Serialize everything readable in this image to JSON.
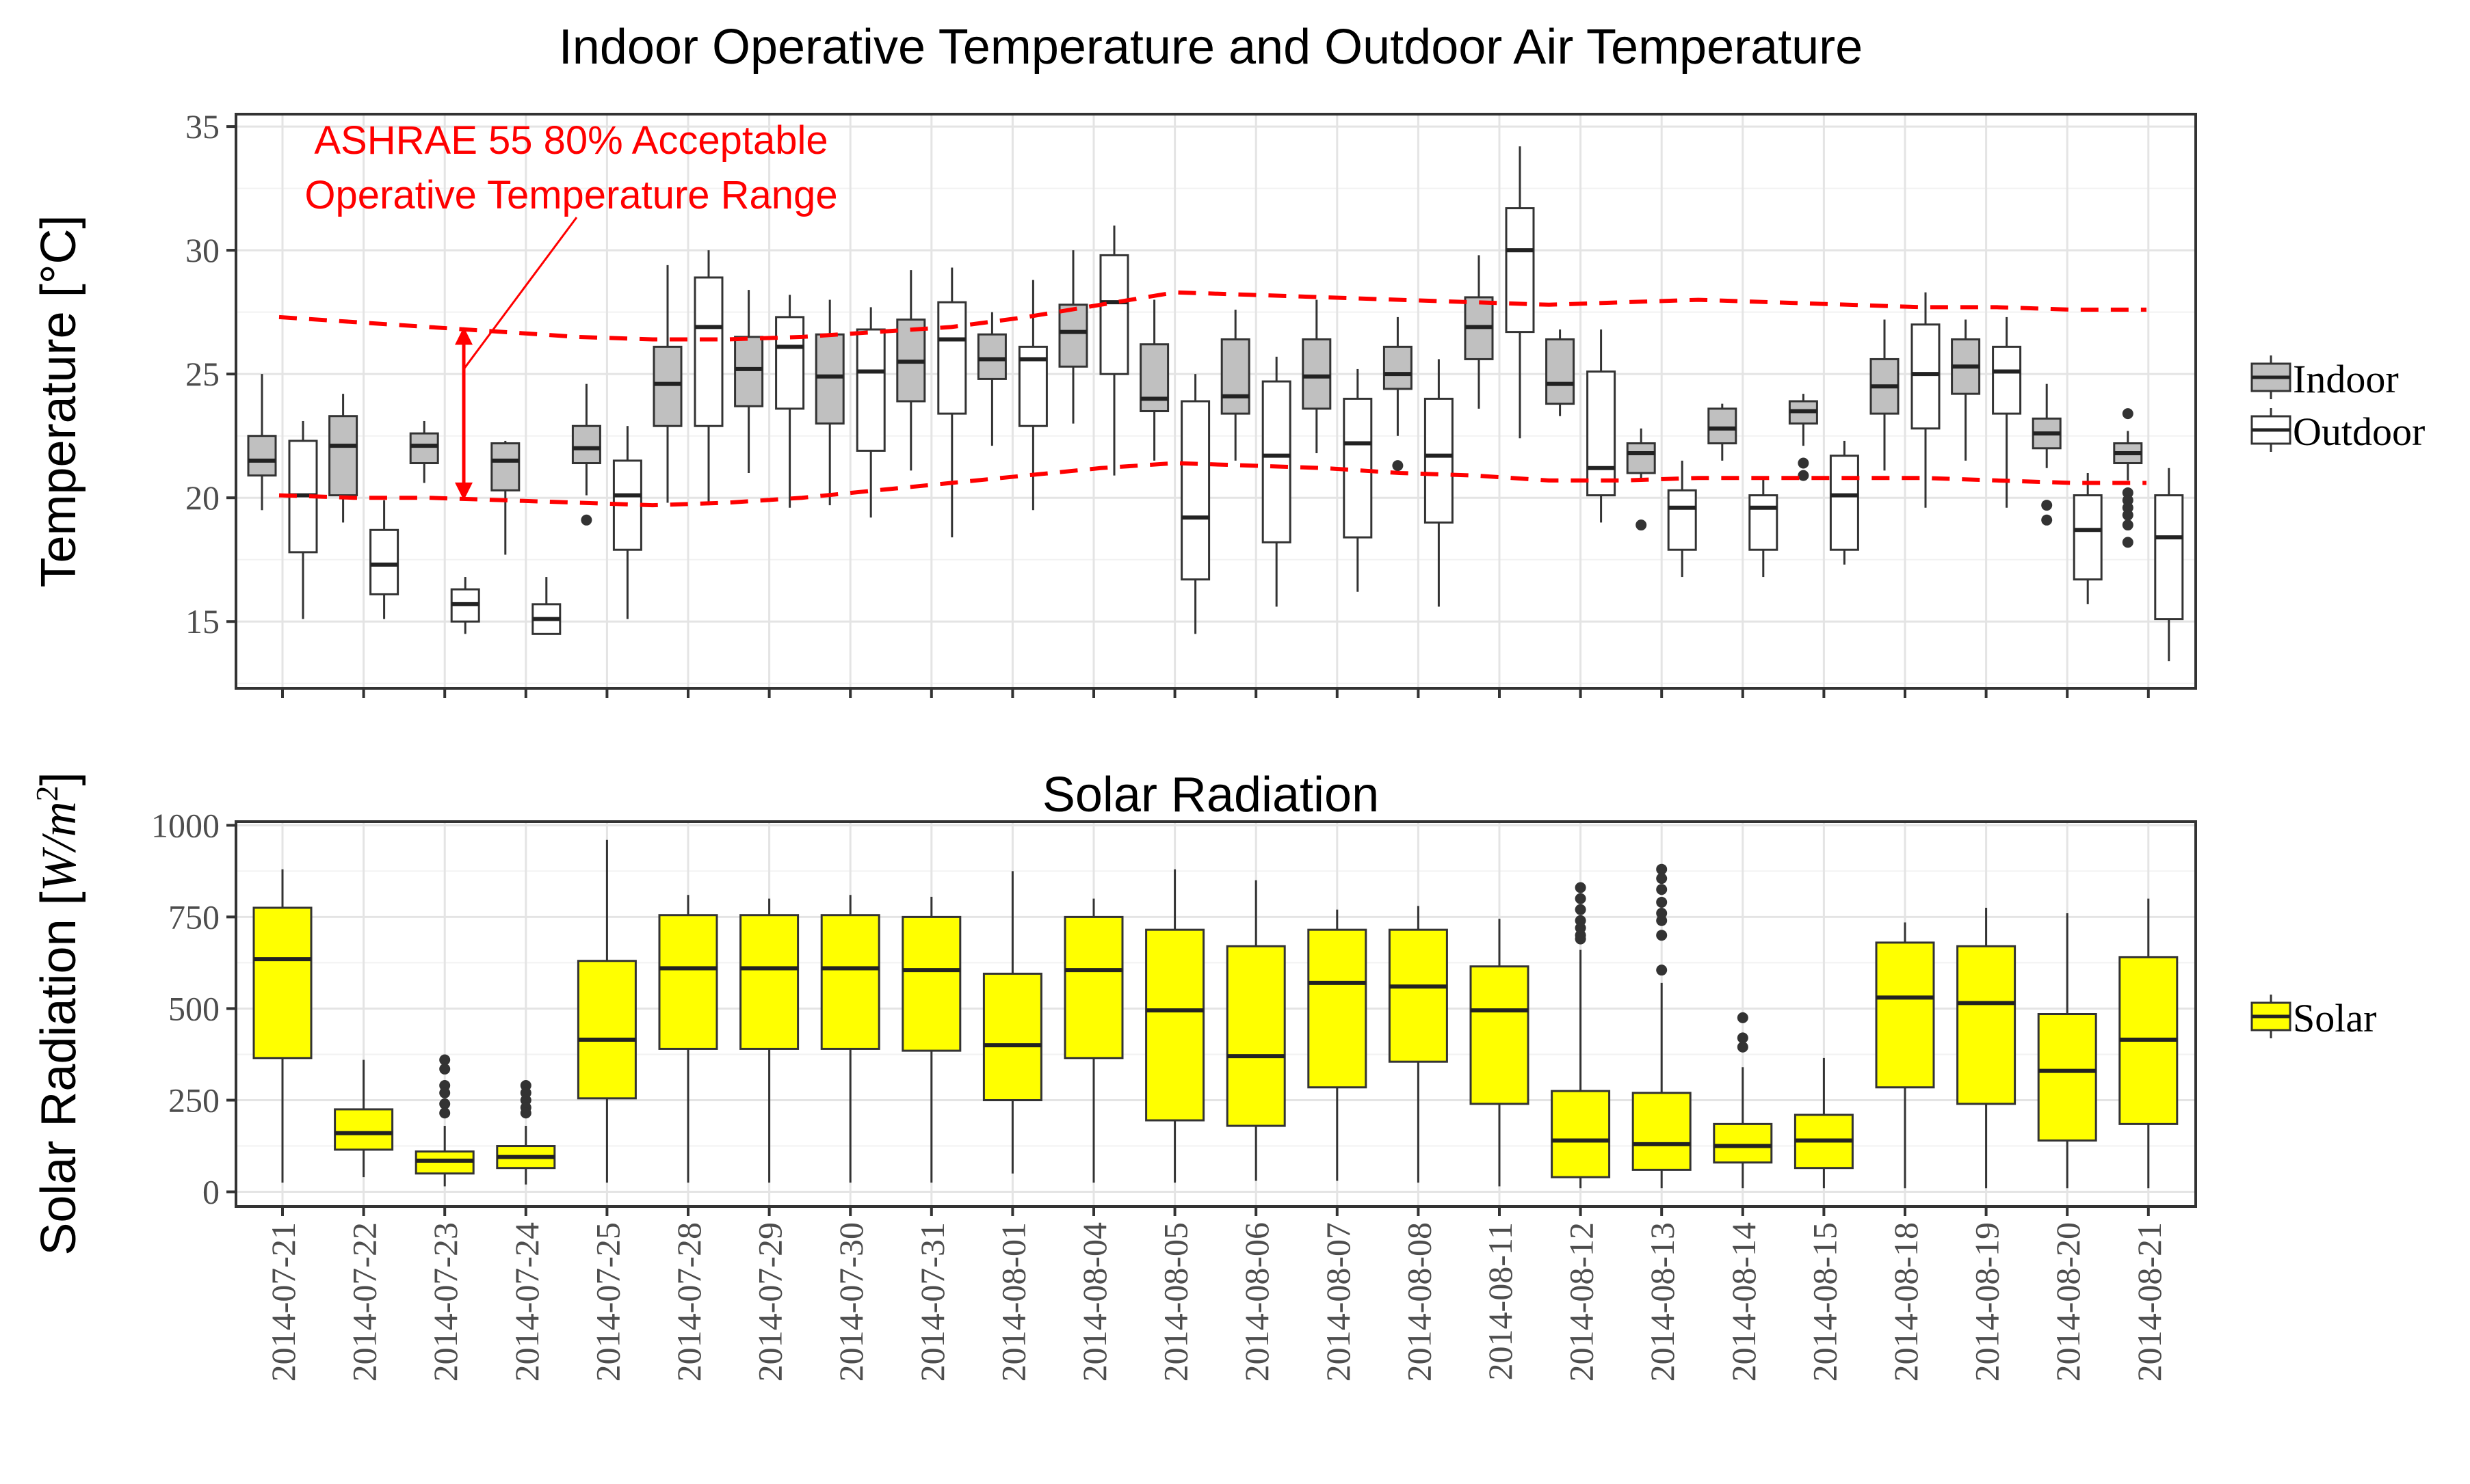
{
  "chart_data": [
    {
      "type": "boxplot",
      "title": "Indoor Operative Temperature and Outdoor Air Temperature",
      "xlabel": "",
      "ylabel": "Temperature [°C]",
      "ylim": [
        12.3,
        35.5
      ],
      "yticks": [
        15,
        20,
        25,
        30,
        35
      ],
      "grid": true,
      "legend_position": "right",
      "categories": [
        "2014-07-21",
        "2014-07-22",
        "2014-07-23",
        "2014-07-24",
        "2014-07-25",
        "2014-07-28",
        "2014-07-29",
        "2014-07-30",
        "2014-07-31",
        "2014-08-01",
        "2014-08-04",
        "2014-08-05",
        "2014-08-06",
        "2014-08-07",
        "2014-08-08",
        "2014-08-11",
        "2014-08-12",
        "2014-08-13",
        "2014-08-14",
        "2014-08-15",
        "2014-08-18",
        "2014-08-19",
        "2014-08-20",
        "2014-08-21"
      ],
      "series": [
        {
          "name": "Indoor",
          "color": "#c0c0c0",
          "boxes": [
            {
              "min": 19.5,
              "q1": 20.9,
              "median": 21.5,
              "q3": 22.5,
              "max": 25.0,
              "outliers": []
            },
            {
              "min": 19.0,
              "q1": 20.1,
              "median": 22.1,
              "q3": 23.3,
              "max": 24.2,
              "outliers": []
            },
            {
              "min": 20.6,
              "q1": 21.4,
              "median": 22.1,
              "q3": 22.6,
              "max": 23.1,
              "outliers": []
            },
            {
              "min": 17.7,
              "q1": 20.3,
              "median": 21.5,
              "q3": 22.2,
              "max": 22.3,
              "outliers": []
            },
            {
              "min": 20.1,
              "q1": 21.4,
              "median": 22.0,
              "q3": 22.9,
              "max": 24.6,
              "outliers": [
                19.1
              ]
            },
            {
              "min": 19.8,
              "q1": 22.9,
              "median": 24.6,
              "q3": 26.1,
              "max": 29.4,
              "outliers": []
            },
            {
              "min": 21.0,
              "q1": 23.7,
              "median": 25.2,
              "q3": 26.5,
              "max": 28.4,
              "outliers": []
            },
            {
              "min": 19.7,
              "q1": 23.0,
              "median": 24.9,
              "q3": 26.6,
              "max": 28.0,
              "outliers": []
            },
            {
              "min": 21.1,
              "q1": 23.9,
              "median": 25.5,
              "q3": 27.2,
              "max": 29.2,
              "outliers": []
            },
            {
              "min": 22.1,
              "q1": 24.8,
              "median": 25.6,
              "q3": 26.6,
              "max": 27.5,
              "outliers": []
            },
            {
              "min": 23.0,
              "q1": 25.3,
              "median": 26.7,
              "q3": 27.8,
              "max": 30.0,
              "outliers": []
            },
            {
              "min": 21.5,
              "q1": 23.5,
              "median": 24.0,
              "q3": 26.2,
              "max": 28.0,
              "outliers": []
            },
            {
              "min": 21.5,
              "q1": 23.4,
              "median": 24.1,
              "q3": 26.4,
              "max": 27.6,
              "outliers": []
            },
            {
              "min": 21.8,
              "q1": 23.6,
              "median": 24.9,
              "q3": 26.4,
              "max": 28.0,
              "outliers": []
            },
            {
              "min": 22.5,
              "q1": 24.4,
              "median": 25.0,
              "q3": 26.1,
              "max": 27.3,
              "outliers": [
                21.3
              ]
            },
            {
              "min": 23.6,
              "q1": 25.6,
              "median": 26.9,
              "q3": 28.1,
              "max": 29.8,
              "outliers": []
            },
            {
              "min": 23.3,
              "q1": 23.8,
              "median": 24.6,
              "q3": 26.4,
              "max": 26.8,
              "outliers": []
            },
            {
              "min": 20.8,
              "q1": 21.0,
              "median": 21.8,
              "q3": 22.2,
              "max": 22.8,
              "outliers": [
                18.9
              ]
            },
            {
              "min": 21.5,
              "q1": 22.2,
              "median": 22.8,
              "q3": 23.6,
              "max": 23.8,
              "outliers": []
            },
            {
              "min": 22.1,
              "q1": 23.0,
              "median": 23.5,
              "q3": 23.9,
              "max": 24.2,
              "outliers": [
                21.4,
                20.9
              ]
            },
            {
              "min": 21.1,
              "q1": 23.4,
              "median": 24.5,
              "q3": 25.6,
              "max": 27.2,
              "outliers": []
            },
            {
              "min": 21.5,
              "q1": 24.2,
              "median": 25.3,
              "q3": 26.4,
              "max": 27.2,
              "outliers": []
            },
            {
              "min": 21.2,
              "q1": 22.0,
              "median": 22.6,
              "q3": 23.2,
              "max": 24.6,
              "outliers": [
                19.7,
                19.1
              ]
            },
            {
              "min": 20.7,
              "q1": 21.4,
              "median": 21.8,
              "q3": 22.2,
              "max": 22.7,
              "outliers": [
                23.4,
                20.2,
                19.9,
                19.6,
                19.3,
                18.9,
                18.2
              ]
            }
          ]
        },
        {
          "name": "Outdoor",
          "color": "#ffffff",
          "boxes": [
            {
              "min": 15.1,
              "q1": 17.8,
              "median": 20.1,
              "q3": 22.3,
              "max": 23.1,
              "outliers": []
            },
            {
              "min": 15.1,
              "q1": 16.1,
              "median": 17.3,
              "q3": 18.7,
              "max": 19.9,
              "outliers": []
            },
            {
              "min": 14.5,
              "q1": 15.0,
              "median": 15.7,
              "q3": 16.3,
              "max": 16.8,
              "outliers": []
            },
            {
              "min": 14.5,
              "q1": 14.5,
              "median": 15.1,
              "q3": 15.7,
              "max": 16.8,
              "outliers": []
            },
            {
              "min": 15.1,
              "q1": 17.9,
              "median": 20.1,
              "q3": 21.5,
              "max": 22.9,
              "outliers": []
            },
            {
              "min": 19.7,
              "q1": 22.9,
              "median": 26.9,
              "q3": 28.9,
              "max": 30.0,
              "outliers": []
            },
            {
              "min": 19.6,
              "q1": 23.6,
              "median": 26.1,
              "q3": 27.3,
              "max": 28.2,
              "outliers": []
            },
            {
              "min": 19.2,
              "q1": 21.9,
              "median": 25.1,
              "q3": 26.8,
              "max": 27.7,
              "outliers": []
            },
            {
              "min": 18.4,
              "q1": 23.4,
              "median": 26.4,
              "q3": 27.9,
              "max": 29.3,
              "outliers": []
            },
            {
              "min": 19.5,
              "q1": 22.9,
              "median": 25.6,
              "q3": 26.1,
              "max": 28.8,
              "outliers": []
            },
            {
              "min": 20.9,
              "q1": 25.0,
              "median": 27.9,
              "q3": 29.8,
              "max": 31.0,
              "outliers": []
            },
            {
              "min": 14.5,
              "q1": 16.7,
              "median": 19.2,
              "q3": 23.9,
              "max": 25.0,
              "outliers": []
            },
            {
              "min": 15.6,
              "q1": 18.2,
              "median": 21.7,
              "q3": 24.7,
              "max": 25.7,
              "outliers": []
            },
            {
              "min": 16.2,
              "q1": 18.4,
              "median": 22.2,
              "q3": 24.0,
              "max": 25.2,
              "outliers": []
            },
            {
              "min": 15.6,
              "q1": 19.0,
              "median": 21.7,
              "q3": 24.0,
              "max": 25.6,
              "outliers": []
            },
            {
              "min": 22.4,
              "q1": 26.7,
              "median": 30.0,
              "q3": 31.7,
              "max": 34.2,
              "outliers": []
            },
            {
              "min": 19.0,
              "q1": 20.1,
              "median": 21.2,
              "q3": 25.1,
              "max": 26.8,
              "outliers": []
            },
            {
              "min": 16.8,
              "q1": 17.9,
              "median": 19.6,
              "q3": 20.3,
              "max": 21.5,
              "outliers": []
            },
            {
              "min": 16.8,
              "q1": 17.9,
              "median": 19.6,
              "q3": 20.1,
              "max": 20.8,
              "outliers": []
            },
            {
              "min": 17.3,
              "q1": 17.9,
              "median": 20.1,
              "q3": 21.7,
              "max": 22.3,
              "outliers": []
            },
            {
              "min": 19.6,
              "q1": 22.8,
              "median": 25.0,
              "q3": 27.0,
              "max": 28.3,
              "outliers": []
            },
            {
              "min": 19.6,
              "q1": 23.4,
              "median": 25.1,
              "q3": 26.1,
              "max": 27.3,
              "outliers": []
            },
            {
              "min": 15.7,
              "q1": 16.7,
              "median": 18.7,
              "q3": 20.1,
              "max": 21.0,
              "outliers": []
            },
            {
              "min": 13.4,
              "q1": 15.1,
              "median": 18.4,
              "q3": 20.1,
              "max": 21.2,
              "outliers": []
            }
          ]
        }
      ],
      "comfort_range": {
        "color": "#ff0000",
        "upper": [
          27.3,
          27.1,
          26.9,
          26.7,
          26.5,
          26.4,
          26.4,
          26.5,
          26.7,
          26.9,
          27.3,
          27.8,
          28.3,
          28.2,
          28.1,
          28.0,
          27.9,
          27.8,
          27.9,
          28.0,
          27.9,
          27.8,
          27.7,
          27.7,
          27.6,
          27.6
        ],
        "lower": [
          20.1,
          20.0,
          20.0,
          19.9,
          19.8,
          19.7,
          19.8,
          20.0,
          20.3,
          20.6,
          20.9,
          21.2,
          21.4,
          21.3,
          21.2,
          21.0,
          20.9,
          20.7,
          20.7,
          20.8,
          20.8,
          20.8,
          20.8,
          20.7,
          20.6,
          20.6
        ]
      },
      "annotation": {
        "line1": "ASHRAE 55 80% Acceptable",
        "line2": "Operative Temperature Range",
        "color": "#ff0000",
        "arrow_range": [
          19.9,
          26.9
        ]
      }
    },
    {
      "type": "boxplot",
      "title": "Solar Radiation",
      "xlabel": "",
      "ylabel": "Solar Radiation [W/m²]",
      "ylabel_prefix": "Solar Radiation [",
      "ylabel_unit": "W/m",
      "ylabel_exp": "2",
      "ylabel_suffix": "]",
      "ylim": [
        -40,
        1010
      ],
      "yticks": [
        0,
        250,
        500,
        750,
        1000
      ],
      "grid": true,
      "legend_position": "right",
      "categories": [
        "2014-07-21",
        "2014-07-22",
        "2014-07-23",
        "2014-07-24",
        "2014-07-25",
        "2014-07-28",
        "2014-07-29",
        "2014-07-30",
        "2014-07-31",
        "2014-08-01",
        "2014-08-04",
        "2014-08-05",
        "2014-08-06",
        "2014-08-07",
        "2014-08-08",
        "2014-08-11",
        "2014-08-12",
        "2014-08-13",
        "2014-08-14",
        "2014-08-15",
        "2014-08-18",
        "2014-08-19",
        "2014-08-20",
        "2014-08-21"
      ],
      "series": [
        {
          "name": "Solar",
          "color": "#ffff00",
          "boxes": [
            {
              "min": 25,
              "q1": 365,
              "median": 635,
              "q3": 775,
              "max": 880,
              "outliers": []
            },
            {
              "min": 40,
              "q1": 115,
              "median": 160,
              "q3": 225,
              "max": 360,
              "outliers": []
            },
            {
              "min": 15,
              "q1": 50,
              "median": 85,
              "q3": 110,
              "max": 180,
              "outliers": [
                360,
                335,
                290,
                270,
                240,
                215
              ]
            },
            {
              "min": 20,
              "q1": 65,
              "median": 95,
              "q3": 125,
              "max": 180,
              "outliers": [
                290,
                270,
                250,
                230,
                215
              ]
            },
            {
              "min": 25,
              "q1": 255,
              "median": 415,
              "q3": 630,
              "max": 960,
              "outliers": []
            },
            {
              "min": 25,
              "q1": 390,
              "median": 610,
              "q3": 755,
              "max": 810,
              "outliers": []
            },
            {
              "min": 25,
              "q1": 390,
              "median": 610,
              "q3": 755,
              "max": 800,
              "outliers": []
            },
            {
              "min": 25,
              "q1": 390,
              "median": 610,
              "q3": 755,
              "max": 810,
              "outliers": []
            },
            {
              "min": 25,
              "q1": 385,
              "median": 605,
              "q3": 750,
              "max": 805,
              "outliers": []
            },
            {
              "min": 50,
              "q1": 250,
              "median": 400,
              "q3": 595,
              "max": 875,
              "outliers": []
            },
            {
              "min": 25,
              "q1": 365,
              "median": 605,
              "q3": 750,
              "max": 800,
              "outliers": []
            },
            {
              "min": 25,
              "q1": 195,
              "median": 495,
              "q3": 715,
              "max": 880,
              "outliers": []
            },
            {
              "min": 30,
              "q1": 180,
              "median": 370,
              "q3": 670,
              "max": 850,
              "outliers": []
            },
            {
              "min": 30,
              "q1": 285,
              "median": 570,
              "q3": 715,
              "max": 770,
              "outliers": []
            },
            {
              "min": 25,
              "q1": 355,
              "median": 560,
              "q3": 715,
              "max": 780,
              "outliers": []
            },
            {
              "min": 15,
              "q1": 240,
              "median": 495,
              "q3": 615,
              "max": 745,
              "outliers": []
            },
            {
              "min": 10,
              "q1": 40,
              "median": 140,
              "q3": 275,
              "max": 660,
              "outliers": [
                830,
                800,
                770,
                740,
                720,
                700,
                690
              ]
            },
            {
              "min": 10,
              "q1": 60,
              "median": 130,
              "q3": 270,
              "max": 570,
              "outliers": [
                880,
                855,
                825,
                790,
                760,
                740,
                700,
                605
              ]
            },
            {
              "min": 10,
              "q1": 80,
              "median": 125,
              "q3": 185,
              "max": 340,
              "outliers": [
                475,
                420,
                395
              ]
            },
            {
              "min": 10,
              "q1": 65,
              "median": 140,
              "q3": 210,
              "max": 365,
              "outliers": []
            },
            {
              "min": 10,
              "q1": 285,
              "median": 530,
              "q3": 680,
              "max": 735,
              "outliers": []
            },
            {
              "min": 10,
              "q1": 240,
              "median": 515,
              "q3": 670,
              "max": 775,
              "outliers": []
            },
            {
              "min": 10,
              "q1": 140,
              "median": 330,
              "q3": 485,
              "max": 760,
              "outliers": []
            },
            {
              "min": 10,
              "q1": 185,
              "median": 415,
              "q3": 640,
              "max": 800,
              "outliers": []
            }
          ]
        }
      ]
    }
  ]
}
